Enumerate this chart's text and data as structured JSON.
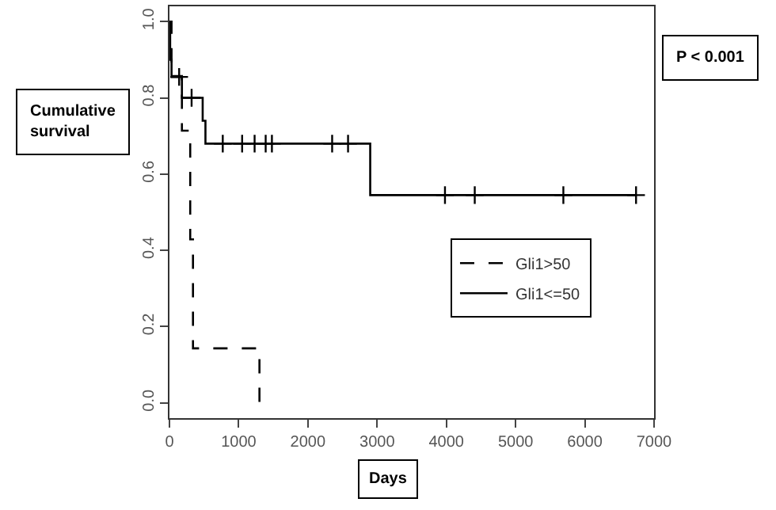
{
  "chart_data": {
    "type": "step",
    "xlabel": "Days",
    "annotations": [
      "Cumulative survival",
      "P < 0.001"
    ],
    "xlim": [
      0,
      7000
    ],
    "xticks": [
      0,
      1000,
      2000,
      3000,
      4000,
      5000,
      6000,
      7000
    ],
    "ylim": [
      -0.04,
      1.04
    ],
    "yticks": [
      {
        "value": 0,
        "label": "0.0"
      },
      0.2,
      0.4,
      0.6,
      0.8,
      {
        "value": 1,
        "label": "1.0"
      }
    ],
    "grid": false,
    "legend": "right",
    "series": [
      {
        "name": "Gli1>50",
        "color": "#000000",
        "line_style": "dashed",
        "x": [
          0,
          30,
          180,
          300,
          340,
          1300
        ],
        "values": [
          1,
          0.857,
          0.714,
          0.429,
          0.143,
          0
        ]
      },
      {
        "name": "Gli1<=50",
        "color": "#000000",
        "line_style": "solid",
        "x": [
          0,
          10,
          30,
          180,
          480,
          520,
          2900,
          6740
        ],
        "values": [
          1,
          0.9,
          0.855,
          0.8,
          0.74,
          0.68,
          0.545,
          0.545
        ]
      },
      {
        "type": "scatter",
        "marker": "cross",
        "color": "#000000",
        "x": [
          140,
          320,
          770,
          1050,
          1230,
          1390,
          1480,
          2350,
          2580,
          3980,
          4410,
          5690,
          6740
        ],
        "values": [
          0.855,
          0.8,
          0.68,
          0.68,
          0.68,
          0.68,
          0.68,
          0.68,
          0.68,
          0.545,
          0.545,
          0.545,
          0.545
        ]
      }
    ]
  }
}
